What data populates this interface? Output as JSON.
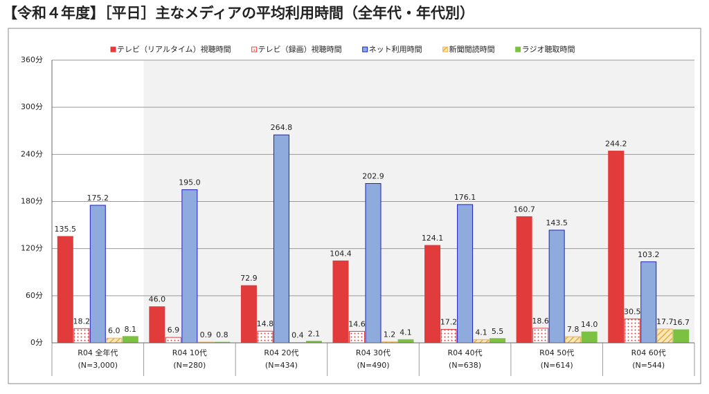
{
  "chart_data": {
    "type": "bar",
    "title": "【令和４年度】［平日］主なメディアの平均利用時間（全年代・年代別）",
    "categories": [
      "R04 全年代",
      "R04 10代",
      "R04 20代",
      "R04 30代",
      "R04 40代",
      "R04 50代",
      "R04 60代"
    ],
    "category_samples": [
      "(N=3,000)",
      "(N=280)",
      "(N=434)",
      "(N=490)",
      "(N=638)",
      "(N=614)",
      "(N=544)"
    ],
    "series": [
      {
        "name": "テレビ（リアルタイム）視聴時間",
        "color": "#e23b3b",
        "pattern": "solid",
        "values": [
          135.5,
          46.0,
          72.9,
          104.4,
          124.1,
          160.7,
          244.2
        ],
        "value_labels": [
          "135.5",
          "46.0",
          "72.9",
          "104.4",
          "124.1",
          "160.7",
          "244.2"
        ]
      },
      {
        "name": "テレビ（録画）視聴時間",
        "color": "#e23b3b",
        "pattern": "dots",
        "values": [
          18.2,
          6.9,
          14.8,
          14.6,
          17.2,
          18.6,
          30.5
        ],
        "value_labels": [
          "18.2",
          "6.9",
          "14.8",
          "14.6",
          "17.2",
          "18.6",
          "30.5"
        ]
      },
      {
        "name": "ネット利用時間",
        "color": "#8faadc",
        "stroke": "#1f1fbf",
        "pattern": "solid",
        "values": [
          175.2,
          195.0,
          264.8,
          202.9,
          176.1,
          143.5,
          103.2
        ],
        "value_labels": [
          "175.2",
          "195.0",
          "264.8",
          "202.9",
          "176.1",
          "143.5",
          "103.2"
        ]
      },
      {
        "name": "新聞閲読時間",
        "color": "#f0b050",
        "pattern": "hatch",
        "values": [
          6.0,
          0.9,
          0.4,
          1.2,
          4.1,
          7.8,
          17.7
        ],
        "value_labels": [
          "6.0",
          "0.9",
          "0.4",
          "1.2",
          "4.1",
          "7.8",
          "17.7"
        ]
      },
      {
        "name": "ラジオ聴取時間",
        "color": "#7cc142",
        "pattern": "solid",
        "values": [
          8.1,
          0.8,
          2.1,
          4.1,
          5.5,
          14.0,
          16.7
        ],
        "value_labels": [
          "8.1",
          "0.8",
          "2.1",
          "4.1",
          "5.5",
          "14.0",
          "16.7"
        ]
      }
    ],
    "ylim": [
      0,
      360
    ],
    "yticks": [
      {
        "value": 0,
        "label": "0分"
      },
      {
        "value": 60,
        "label": "60分"
      },
      {
        "value": 120,
        "label": "120分"
      },
      {
        "value": 180,
        "label": "180分"
      },
      {
        "value": 240,
        "label": "240分"
      },
      {
        "value": 300,
        "label": "300分"
      },
      {
        "value": 360,
        "label": "360分"
      }
    ],
    "grid": true,
    "legend": "top"
  }
}
